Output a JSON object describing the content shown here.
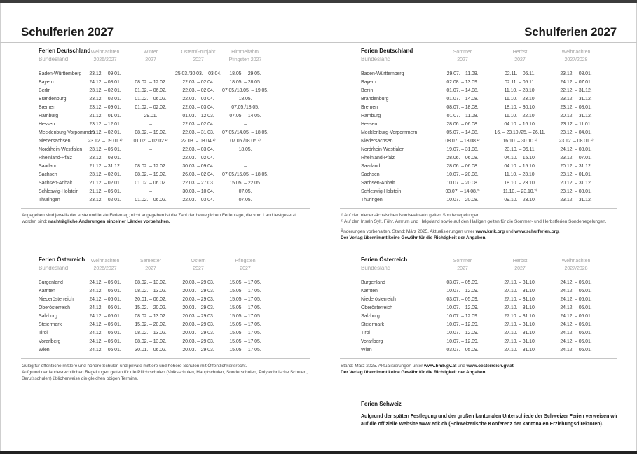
{
  "colors": {
    "ink": "#1c1c1c",
    "body_text": "#3f3f3f",
    "muted_header": "#a2a2a2",
    "rule": "#c6c6c6",
    "page_edge": "#3c3c3c"
  },
  "left_page": {
    "title": "Schulferien 2027",
    "germany": {
      "heading": "Ferien Deutschland",
      "subheading": "Bundesland",
      "columns": [
        {
          "l1": "Weihnachten",
          "l2": "2026/2027"
        },
        {
          "l1": "Winter",
          "l2": "2027"
        },
        {
          "l1": "Ostern/Frühjahr",
          "l2": "2027"
        },
        {
          "l1": "Himmelfahrt/",
          "l2": "Pfingsten 2027"
        }
      ],
      "rows": [
        {
          "label": "Baden-Württemberg",
          "values": [
            "23.12. – 09.01.",
            "–",
            "25.03./30.03. – 03.04.",
            "18.05. – 29.05."
          ]
        },
        {
          "label": "Bayern",
          "values": [
            "24.12. – 08.01.",
            "08.02. – 12.02.",
            "22.03. – 02.04.",
            "18.05. – 28.05."
          ]
        },
        {
          "label": "Berlin",
          "values": [
            "23.12. – 02.01.",
            "01.02. – 06.02.",
            "22.03. – 02.04.",
            "07.05./18.05. – 19.05."
          ]
        },
        {
          "label": "Brandenburg",
          "values": [
            "23.12. – 02.01.",
            "01.02. – 06.02.",
            "22.03. – 03.04.",
            "18.05."
          ]
        },
        {
          "label": "Bremen",
          "values": [
            "23.12. – 09.01.",
            "01.02. – 02.02.",
            "22.03. – 03.04.",
            "07.05./18.05."
          ]
        },
        {
          "label": "Hamburg",
          "values": [
            "21.12. – 01.01.",
            "29.01.",
            "01.03. – 12.03.",
            "07.05. – 14.05."
          ]
        },
        {
          "label": "Hessen",
          "values": [
            "23.12. – 12.01.",
            "–",
            "22.03. – 02.04.",
            "–"
          ]
        },
        {
          "label": "Mecklenburg-Vorpommern",
          "values": [
            "19.12. – 02.01.",
            "08.02. – 19.02.",
            "22.03. – 31.03.",
            "07.05./14.05. – 18.05."
          ]
        },
        {
          "label": "Niedersachsen",
          "values": [
            "23.12. – 09.01.¹⁾",
            "01.02. – 02.02.¹⁾",
            "22.03. – 03.04.¹⁾",
            "07.05./18.05.¹⁾"
          ]
        },
        {
          "label": "Nordrhein-Westfalen",
          "values": [
            "23.12. – 06.01.",
            "–",
            "22.03. – 03.04.",
            "18.05."
          ]
        },
        {
          "label": "Rheinland-Pfalz",
          "values": [
            "23.12. – 08.01.",
            "–",
            "22.03. – 02.04.",
            "–"
          ]
        },
        {
          "label": "Saarland",
          "values": [
            "21.12. – 31.12.",
            "08.02. – 12.02.",
            "30.03. – 09.04.",
            "–"
          ]
        },
        {
          "label": "Sachsen",
          "values": [
            "23.12. – 02.01.",
            "08.02. – 19.02.",
            "26.03. – 02.04.",
            "07.05./15.05. – 18.05."
          ]
        },
        {
          "label": "Sachsen-Anhalt",
          "values": [
            "21.12. – 02.01.",
            "01.02. – 06.02.",
            "22.03. – 27.03.",
            "15.05. – 22.05."
          ]
        },
        {
          "label": "Schleswig-Holstein",
          "values": [
            "21.12. – 06.01.",
            "–",
            "30.03. – 10.04.",
            "07.05."
          ]
        },
        {
          "label": "Thüringen",
          "values": [
            "23.12. – 02.01.",
            "01.02. – 06.02.",
            "22.03. – 03.04.",
            "07.05."
          ]
        }
      ],
      "note_regular": "Angegeben sind jeweils der erste und letzte Ferientag; nicht angegeben ist die Zahl der beweglichen Ferientage, die vom Land festgesetzt worden sind; ",
      "note_bold": "nachträgliche Änderungen einzelner Länder vorbehalten."
    },
    "austria": {
      "heading": "Ferien Österreich",
      "subheading": "Bundesland",
      "columns": [
        {
          "l1": "Weihnachten",
          "l2": "2026/2027"
        },
        {
          "l1": "Semester",
          "l2": "2027"
        },
        {
          "l1": "Ostern",
          "l2": "2027"
        },
        {
          "l1": "Pfingsten",
          "l2": "2027"
        }
      ],
      "rows": [
        {
          "label": "Burgenland",
          "values": [
            "24.12. – 06.01.",
            "08.02. – 13.02.",
            "20.03. – 29.03.",
            "15.05. – 17.05."
          ]
        },
        {
          "label": "Kärnten",
          "values": [
            "24.12. – 06.01.",
            "08.02. – 13.02.",
            "20.03. – 29.03.",
            "15.05. – 17.05."
          ]
        },
        {
          "label": "Niederösterreich",
          "values": [
            "24.12. – 06.01.",
            "30.01. – 06.02.",
            "20.03. – 29.03.",
            "15.05. – 17.05."
          ]
        },
        {
          "label": "Oberösterreich",
          "values": [
            "24.12. – 06.01.",
            "15.02. – 20.02.",
            "20.03. – 29.03.",
            "15.05. – 17.05."
          ]
        },
        {
          "label": "Salzburg",
          "values": [
            "24.12. – 06.01.",
            "08.02. – 13.02.",
            "20.03. – 29.03.",
            "15.05. – 17.05."
          ]
        },
        {
          "label": "Steiermark",
          "values": [
            "24.12. – 06.01.",
            "15.02. – 20.02.",
            "20.03. – 29.03.",
            "15.05. – 17.05."
          ]
        },
        {
          "label": "Tirol",
          "values": [
            "24.12. – 06.01.",
            "08.02. – 13.02.",
            "20.03. – 29.03.",
            "15.05. – 17.05."
          ]
        },
        {
          "label": "Vorarlberg",
          "values": [
            "24.12. – 06.01.",
            "08.02. – 13.02.",
            "20.03. – 29.03.",
            "15.05. – 17.05."
          ]
        },
        {
          "label": "Wien",
          "values": [
            "24.12. – 06.01.",
            "30.01. – 06.02.",
            "20.03. – 29.03.",
            "15.05. – 17.05."
          ]
        }
      ],
      "note_line1": "Gültig für öffentliche mittlere und höhere Schulen und private mittlere und höhere Schulen mit Öffentlichkeitsrecht.",
      "note_line2": "Aufgrund der landesrechtlichen Regelungen gelten für die Pflichtschulen (Volksschulen, Hauptschulen, Sonderschulen, Polytechnische Schulen, Berufsschulen) üblicherweise die gleichen obigen Termine."
    }
  },
  "right_page": {
    "title": "Schulferien 2027",
    "germany": {
      "heading": "Ferien Deutschland",
      "subheading": "Bundesland",
      "columns": [
        {
          "l1": "Sommer",
          "l2": "2027"
        },
        {
          "l1": "Herbst",
          "l2": "2027"
        },
        {
          "l1": "Weihnachten",
          "l2": "2027/2028"
        }
      ],
      "rows": [
        {
          "label": "Baden-Württemberg",
          "values": [
            "29.07. – 11.09.",
            "02.11. – 06.11.",
            "23.12. – 08.01."
          ]
        },
        {
          "label": "Bayern",
          "values": [
            "02.08. – 13.09.",
            "02.11. – 05.11.",
            "24.12. – 07.01."
          ]
        },
        {
          "label": "Berlin",
          "values": [
            "01.07. – 14.08.",
            "11.10. – 23.10.",
            "22.12. – 31.12."
          ]
        },
        {
          "label": "Brandenburg",
          "values": [
            "01.07. – 14.08.",
            "11.10. – 23.10.",
            "23.12. – 31.12."
          ]
        },
        {
          "label": "Bremen",
          "values": [
            "08.07. – 18.08.",
            "18.10. – 30.10.",
            "23.12. – 08.01."
          ]
        },
        {
          "label": "Hamburg",
          "values": [
            "01.07. – 11.08.",
            "11.10. – 22.10.",
            "20.12. – 31.12."
          ]
        },
        {
          "label": "Hessen",
          "values": [
            "28.06. – 06.08.",
            "04.10. – 16.10.",
            "23.12. – 11.01."
          ]
        },
        {
          "label": "Mecklenburg-Vorpommern",
          "values": [
            "05.07. – 14.08.",
            "16. – 23.10./25. – 26.11.",
            "23.12. – 04.01."
          ]
        },
        {
          "label": "Niedersachsen",
          "values": [
            "08.07. – 18.08.¹⁾",
            "16.10. – 30.10.¹⁾",
            "23.12. – 08.01.¹⁾"
          ]
        },
        {
          "label": "Nordrhein-Westfalen",
          "values": [
            "19.07. – 31.08.",
            "23.10. – 06.11.",
            "24.12. – 08.01."
          ]
        },
        {
          "label": "Rheinland-Pfalz",
          "values": [
            "28.06. – 06.08.",
            "04.10. – 15.10.",
            "23.12. – 07.01."
          ]
        },
        {
          "label": "Saarland",
          "values": [
            "28.06. – 06.08.",
            "04.10. – 15.10.",
            "20.12. – 31.12."
          ]
        },
        {
          "label": "Sachsen",
          "values": [
            "10.07. – 20.08.",
            "11.10. – 23.10.",
            "23.12. – 01.01."
          ]
        },
        {
          "label": "Sachsen-Anhalt",
          "values": [
            "10.07. – 20.08.",
            "18.10. – 23.10.",
            "20.12. – 31.12."
          ]
        },
        {
          "label": "Schleswig-Holstein",
          "values": [
            "03.07. – 14.08.²⁾",
            "11.10. – 23.10.²⁾",
            "23.12. – 08.01."
          ]
        },
        {
          "label": "Thüringen",
          "values": [
            "10.07. – 20.08.",
            "09.10. – 23.10.",
            "23.12. – 31.12."
          ]
        }
      ],
      "fn1": "¹⁾ Auf den niedersächsischen Nordseeinseln gelten Sonderregelungen.",
      "fn2": "²⁾ Auf den Inseln Sylt, Föhr, Amrum und Helgoland sowie auf den Halligen gelten für die Sommer- und Herbstferien Sonderregelungen.",
      "update_a": "Änderungen vorbehalten. Stand: März 2025. Aktualisierungen unter ",
      "update_b": "www.kmk.org",
      "update_c": " und ",
      "update_d": "www.schulferien.org",
      "update_e": ".",
      "disclaimer": "Der Verlag übernimmt keine Gewähr für die Richtigkeit der Angaben."
    },
    "austria": {
      "heading": "Ferien Österreich",
      "subheading": "Bundesland",
      "columns": [
        {
          "l1": "Sommer",
          "l2": "2027"
        },
        {
          "l1": "Herbst",
          "l2": "2027"
        },
        {
          "l1": "Weihnachten",
          "l2": "2027/2028"
        }
      ],
      "rows": [
        {
          "label": "Burgenland",
          "values": [
            "03.07. – 05.09.",
            "27.10. – 31.10.",
            "24.12. – 06.01."
          ]
        },
        {
          "label": "Kärnten",
          "values": [
            "10.07. – 12.09.",
            "27.10. – 31.10.",
            "24.12. – 06.01."
          ]
        },
        {
          "label": "Niederösterreich",
          "values": [
            "03.07. – 05.09.",
            "27.10. – 31.10.",
            "24.12. – 06.01."
          ]
        },
        {
          "label": "Oberösterreich",
          "values": [
            "10.07. – 12.09.",
            "27.10. – 31.10.",
            "24.12. – 06.01."
          ]
        },
        {
          "label": "Salzburg",
          "values": [
            "10.07. – 12.09.",
            "27.10. – 31.10.",
            "24.12. – 06.01."
          ]
        },
        {
          "label": "Steiermark",
          "values": [
            "10.07. – 12.09.",
            "27.10. – 31.10.",
            "24.12. – 06.01."
          ]
        },
        {
          "label": "Tirol",
          "values": [
            "10.07. – 12.09.",
            "27.10. – 31.10.",
            "24.12. – 06.01."
          ]
        },
        {
          "label": "Vorarlberg",
          "values": [
            "10.07. – 12.09.",
            "27.10. – 31.10.",
            "24.12. – 06.01."
          ]
        },
        {
          "label": "Wien",
          "values": [
            "03.07. – 05.09.",
            "27.10. – 31.10.",
            "24.12. – 06.01."
          ]
        }
      ],
      "stand_a": "Stand: März 2025. Aktualisierungen unter ",
      "stand_b": "www.bmb.gv.at",
      "stand_c": " und ",
      "stand_d": "www.oesterreich.gv.at",
      "stand_e": ".",
      "disclaimer": "Der Verlag übernimmt keine Gewähr für die Richtigkeit der Angaben."
    },
    "switzerland": {
      "heading": "Ferien Schweiz",
      "body": "Aufgrund der späten Festlegung und der großen kantonalen Unterschiede der Schweizer Ferien verweisen wir auf die offizielle Website www.edk.ch (Schweizerische Konferenz der kantonalen Erziehungsdirektoren)."
    }
  }
}
